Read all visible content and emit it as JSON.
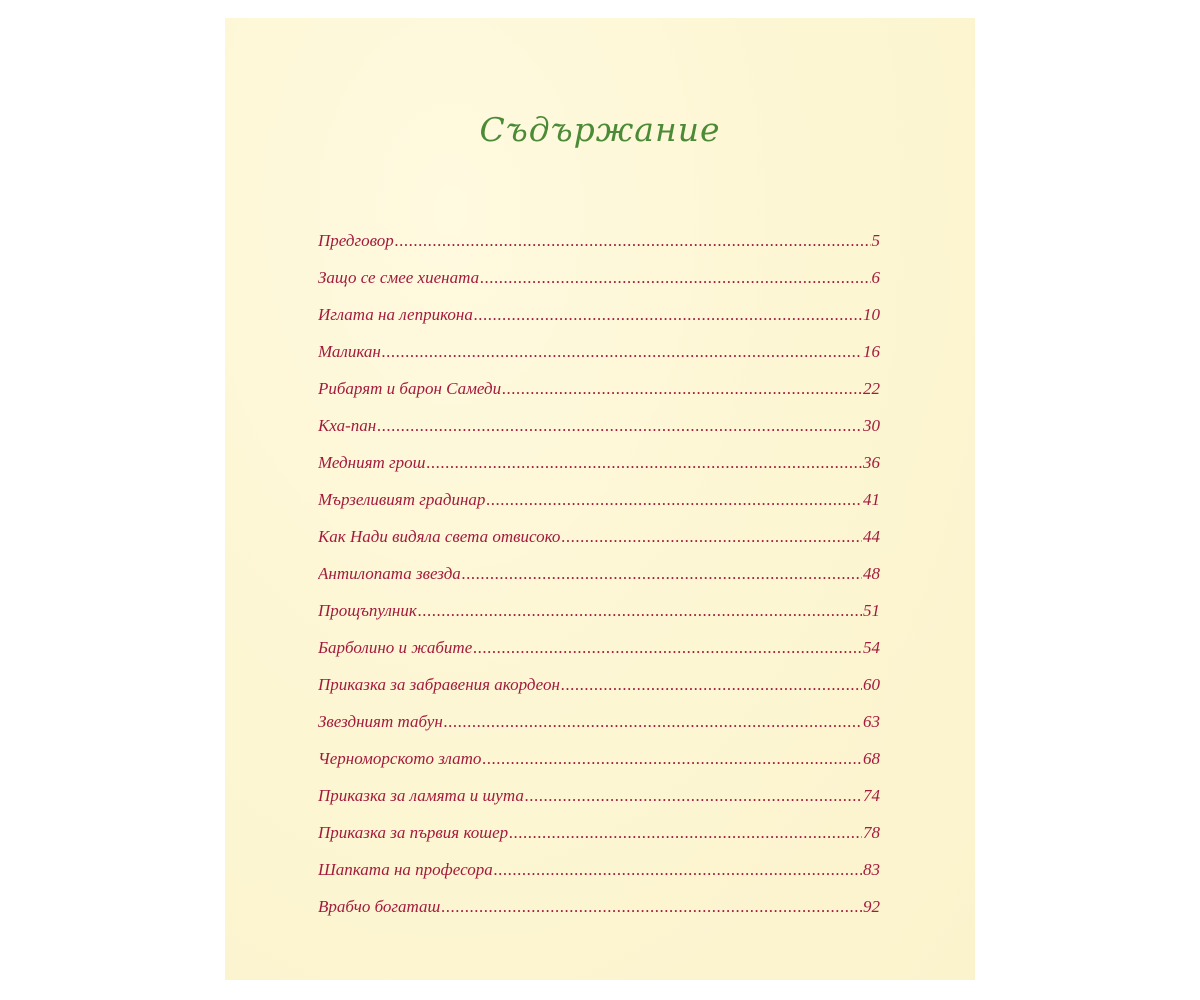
{
  "title": "Съдържание",
  "colors": {
    "title": "#4b8a36",
    "entries": "#a31a3c",
    "paper": "#fdf6d3"
  },
  "entries": [
    {
      "label": "Предговор",
      "page": "5"
    },
    {
      "label": "Защо се смее хиената",
      "page": "6"
    },
    {
      "label": "Иглата на леприкона",
      "page": "10"
    },
    {
      "label": "Маликан",
      "page": "16"
    },
    {
      "label": "Рибарят и барон Самеди",
      "page": "22"
    },
    {
      "label": "Кха-пан",
      "page": "30"
    },
    {
      "label": "Медният грош",
      "page": "36"
    },
    {
      "label": "Мързеливият градинар",
      "page": "41"
    },
    {
      "label": "Как Нади видяла света отвисоко",
      "page": "44"
    },
    {
      "label": "Антилопата звезда",
      "page": "48"
    },
    {
      "label": "Прощъпулник",
      "page": "51"
    },
    {
      "label": "Барболино и жабите",
      "page": "54"
    },
    {
      "label": "Приказка за забравения акордеон",
      "page": "60"
    },
    {
      "label": "Звездният табун",
      "page": "63"
    },
    {
      "label": "Черноморското злато",
      "page": "68"
    },
    {
      "label": "Приказка за ламята и шута",
      "page": "74"
    },
    {
      "label": "Приказка за първия кошер",
      "page": "78"
    },
    {
      "label": "Шапката на професора",
      "page": "83"
    },
    {
      "label": "Врабчо богаташ",
      "page": "92"
    }
  ]
}
